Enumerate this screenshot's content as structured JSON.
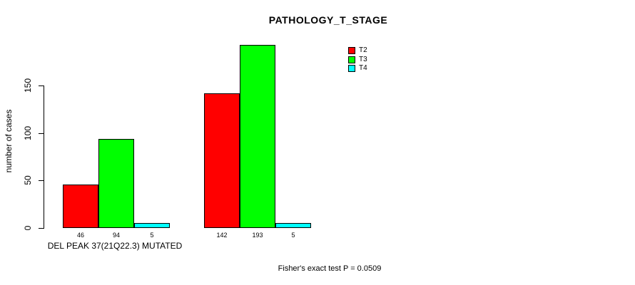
{
  "chart_data": {
    "type": "bar",
    "title": "PATHOLOGY_T_STAGE",
    "ylabel": "number of cases",
    "xlabel": "",
    "ylim": [
      0,
      150
    ],
    "yticks": [
      0,
      50,
      100,
      150
    ],
    "grid": false,
    "legend_position": "top-right-outside-plot",
    "categories": [
      "DEL PEAK 37(21Q22.3) MUTATED",
      ""
    ],
    "series": [
      {
        "name": "T2",
        "color": "#ff0000",
        "values": [
          46,
          142
        ]
      },
      {
        "name": "T3",
        "color": "#00ff00",
        "values": [
          94,
          193
        ]
      },
      {
        "name": "T4",
        "color": "#00ffff",
        "values": [
          5,
          5
        ]
      }
    ],
    "bar_value_labels": [
      [
        "46",
        "94",
        "5"
      ],
      [
        "142",
        "193",
        "5"
      ]
    ],
    "footnote": "Fisher's exact test P = 0.0509",
    "colors": {
      "background": "#ffffff",
      "axis": "#000000",
      "text": "#000000"
    }
  }
}
